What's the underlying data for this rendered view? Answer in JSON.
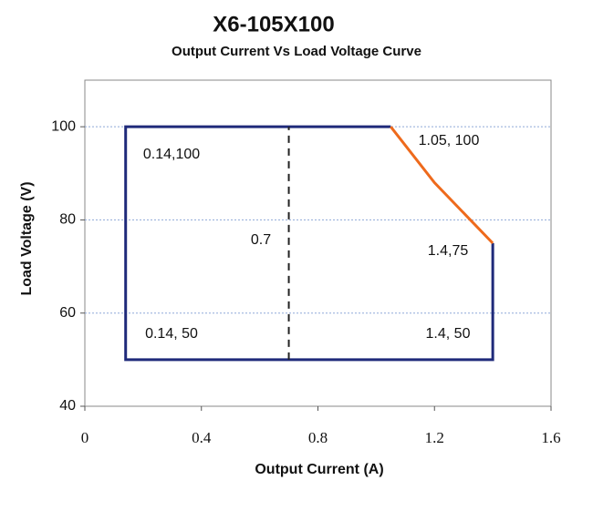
{
  "chart_data": {
    "type": "line",
    "title": "X6-105X100",
    "subtitle": "Output Current Vs Load Voltage Curve",
    "x_label": "Output Current (A)",
    "y_label": "Load Voltage (V)",
    "xlim": [
      0,
      1.6
    ],
    "xticks": [
      0,
      0.4,
      0.8,
      1.2,
      1.6
    ],
    "ylim": [
      40,
      110
    ],
    "yticks": [
      40,
      60,
      80,
      100
    ],
    "grid": true,
    "series": [
      {
        "color": "#1f2a7a",
        "style": "solid",
        "x": [
          1.4,
          1.4,
          0.14,
          0.14,
          1.05
        ],
        "values": [
          75,
          50,
          50,
          100,
          100
        ]
      },
      {
        "color": "#ee6a1c",
        "style": "solid",
        "x": [
          1.05,
          1.2,
          1.4
        ],
        "values": [
          100,
          88,
          75
        ]
      },
      {
        "color": "#222222",
        "style": "dashed",
        "x": [
          0.7,
          0.7
        ],
        "values": [
          50,
          100
        ]
      }
    ],
    "annotations": [
      "0.14,100",
      "0.14, 50",
      "0.7",
      "1.05, 100",
      "1.4,75",
      "1.4, 50"
    ]
  }
}
